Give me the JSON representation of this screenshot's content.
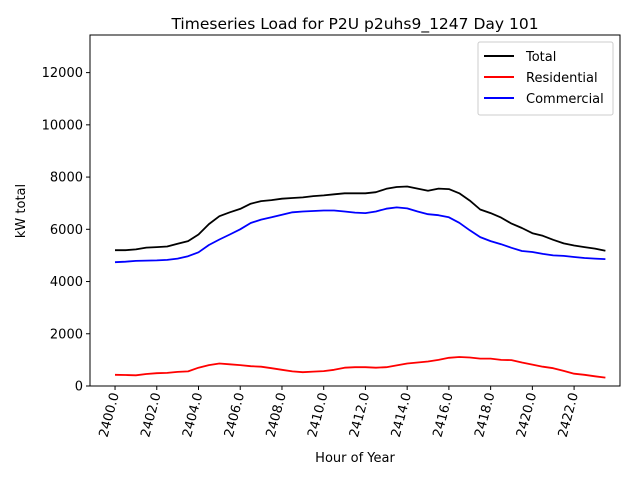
{
  "chart_data": {
    "type": "line",
    "title": "Timeseries Load for P2U p2uhs9_1247  Day 101",
    "xlabel": "Hour of Year",
    "ylabel": "kW total",
    "xlim": [
      2398.8,
      2424.2
    ],
    "ylim": [
      0,
      13440
    ],
    "xticks": [
      2400,
      2402,
      2404,
      2406,
      2408,
      2410,
      2412,
      2414,
      2416,
      2418,
      2420,
      2422
    ],
    "xtick_labels": [
      "2400.0",
      "2402.0",
      "2404.0",
      "2406.0",
      "2408.0",
      "2410.0",
      "2412.0",
      "2414.0",
      "2416.0",
      "2418.0",
      "2420.0",
      "2422.0"
    ],
    "yticks": [
      0,
      2000,
      4000,
      6000,
      8000,
      10000,
      12000
    ],
    "ytick_labels": [
      "0",
      "2000",
      "4000",
      "6000",
      "8000",
      "10000",
      "12000"
    ],
    "legend_position": "upper right",
    "x": [
      2400.0,
      2400.5,
      2401.0,
      2401.5,
      2402.0,
      2402.5,
      2403.0,
      2403.5,
      2404.0,
      2404.5,
      2405.0,
      2405.5,
      2406.0,
      2406.5,
      2407.0,
      2407.5,
      2408.0,
      2408.5,
      2409.0,
      2409.5,
      2410.0,
      2410.5,
      2411.0,
      2411.5,
      2412.0,
      2412.5,
      2413.0,
      2413.5,
      2414.0,
      2414.5,
      2415.0,
      2415.5,
      2416.0,
      2416.5,
      2417.0,
      2417.5,
      2418.0,
      2418.5,
      2419.0,
      2419.5,
      2420.0,
      2420.5,
      2421.0,
      2421.5,
      2422.0,
      2422.5,
      2423.0,
      2423.5
    ],
    "series": [
      {
        "name": "Total",
        "color": "#000000",
        "values": [
          5200,
          5200,
          5230,
          5300,
          5320,
          5340,
          5450,
          5550,
          5800,
          6200,
          6500,
          6650,
          6780,
          6980,
          7080,
          7120,
          7170,
          7200,
          7220,
          7270,
          7300,
          7340,
          7380,
          7380,
          7380,
          7420,
          7550,
          7620,
          7640,
          7560,
          7480,
          7560,
          7540,
          7380,
          7100,
          6760,
          6620,
          6450,
          6220,
          6050,
          5850,
          5750,
          5600,
          5460,
          5380,
          5320,
          5260,
          5180
        ]
      },
      {
        "name": "Residential",
        "color": "#ff0000",
        "values": [
          430,
          420,
          410,
          460,
          490,
          500,
          540,
          560,
          700,
          800,
          860,
          830,
          800,
          760,
          740,
          680,
          620,
          560,
          530,
          550,
          570,
          620,
          700,
          720,
          720,
          700,
          720,
          790,
          860,
          900,
          940,
          1000,
          1080,
          1110,
          1090,
          1050,
          1050,
          1000,
          990,
          900,
          820,
          740,
          680,
          580,
          470,
          430,
          370,
          320
        ]
      },
      {
        "name": "Commercial",
        "color": "#0000ff",
        "values": [
          4740,
          4760,
          4790,
          4800,
          4810,
          4830,
          4880,
          4970,
          5120,
          5400,
          5610,
          5800,
          6000,
          6240,
          6370,
          6460,
          6560,
          6650,
          6680,
          6700,
          6720,
          6720,
          6680,
          6640,
          6620,
          6680,
          6790,
          6840,
          6800,
          6680,
          6580,
          6540,
          6460,
          6250,
          5960,
          5700,
          5550,
          5430,
          5290,
          5170,
          5130,
          5060,
          5000,
          4980,
          4940,
          4900,
          4880,
          4860
        ]
      }
    ]
  }
}
